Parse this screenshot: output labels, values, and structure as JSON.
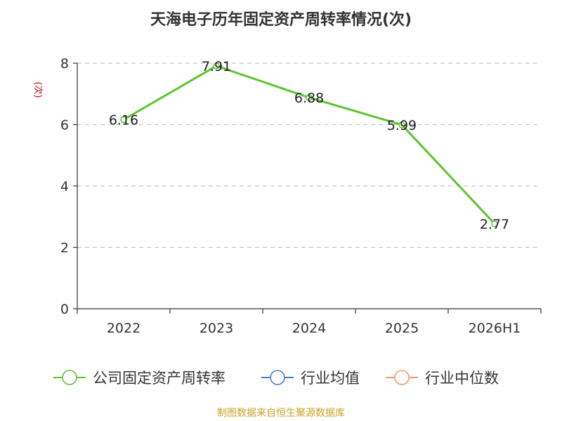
{
  "chart_data": {
    "type": "line",
    "title": "天海电子历年固定资产周转率情况(次)",
    "ylabel": "(次)",
    "xlabel": "",
    "categories": [
      "2022",
      "2023",
      "2024",
      "2025",
      "2026H1"
    ],
    "series": [
      {
        "name": "公司固定资产周转率",
        "values": [
          6.16,
          7.91,
          6.88,
          5.99,
          2.77
        ],
        "color": "#5cc52f"
      }
    ],
    "data_labels": [
      "6.16",
      "7.91",
      "6.88",
      "5.99",
      "2.77"
    ],
    "yticks": [
      "0",
      "2",
      "4",
      "6",
      "8"
    ],
    "ylim": [
      0,
      8
    ],
    "grid": true,
    "legend_position": "bottom",
    "legend": [
      {
        "name": "公司固定资产周转率",
        "color": "#5cc52f"
      },
      {
        "name": "行业均值",
        "color": "#4a7bd6"
      },
      {
        "name": "行业中位数",
        "color": "#f29a6b"
      }
    ]
  },
  "source": "制图数据来自恒生聚源数据库"
}
